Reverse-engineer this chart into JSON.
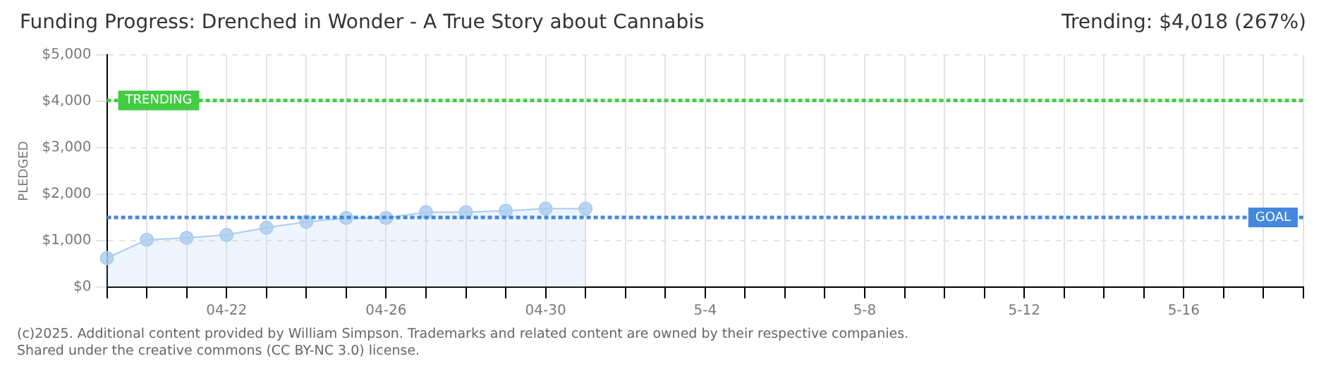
{
  "chart_data": {
    "type": "area",
    "title": "Funding Progress: Drenched in Wonder - A True Story about Cannabis",
    "subtitle": "Trending: $4,018 (267%)",
    "ylabel": "PLEDGED",
    "categories": [
      null,
      null,
      null,
      "04-22",
      null,
      null,
      null,
      "04-26",
      null,
      null,
      null,
      "04-30",
      null,
      null,
      null,
      "5-4",
      null,
      null,
      null,
      "5-8",
      null,
      null,
      null,
      "5-12",
      null,
      null,
      null,
      "5-16",
      null,
      null,
      null
    ],
    "series": [
      {
        "color": "#aaccee",
        "values": [
          625,
          1020,
          1060,
          1125,
          1280,
          1405,
          1490,
          1490,
          1615,
          1615,
          1645,
          1690,
          1690,
          null,
          null,
          null,
          null,
          null,
          null,
          null,
          null,
          null,
          null,
          null,
          null,
          null,
          null,
          null,
          null,
          null,
          null
        ]
      }
    ],
    "ylim": [
      0,
      5000
    ],
    "yticks": [
      {
        "value": 0,
        "label": "$0"
      },
      {
        "value": 1000,
        "label": "$1,000"
      },
      {
        "value": 2000,
        "label": "$2,000"
      },
      {
        "value": 3000,
        "label": "$3,000"
      },
      {
        "value": 4000,
        "label": "$4,000"
      },
      {
        "value": 5000,
        "label": "$5,000"
      }
    ],
    "ref_lines": [
      {
        "axis": "y",
        "value": 4018,
        "label": "TRENDING",
        "color": "#44cc44",
        "line_style": "dotted"
      },
      {
        "axis": "y",
        "value": 1500,
        "label": "GOAL",
        "color": "#4488dd",
        "line_style": "dotted"
      }
    ],
    "grid": true,
    "legend": false,
    "marker": "circle",
    "annotations": [
      "(c)2025. Additional content provided by William Simpson. Trademarks and related content are owned by their respective companies.",
      "Shared under the creative commons (CC BY-NC 3.0) license."
    ]
  }
}
